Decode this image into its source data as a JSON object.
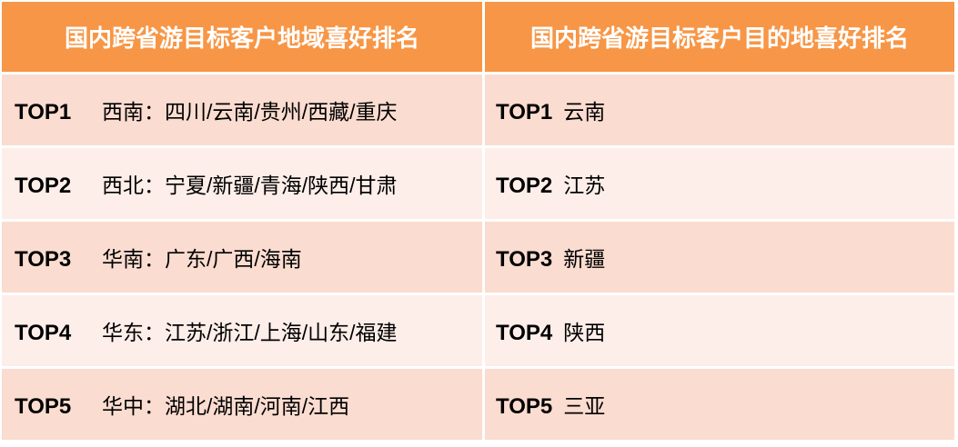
{
  "header": {
    "col1": "国内跨省游目标客户地域喜好排名",
    "col2": "国内跨省游目标客户目的地喜好排名"
  },
  "colors": {
    "header": "#F79646",
    "row_odd": "#FBDCD0",
    "row_even": "#FDEEE9"
  },
  "rows": [
    {
      "rank": "TOP1",
      "region": "西南：四川/云南/贵州/西藏/重庆",
      "rank2": "TOP1",
      "dest": "云南"
    },
    {
      "rank": "TOP2",
      "region": "西北：宁夏/新疆/青海/陕西/甘肃",
      "rank2": "TOP2",
      "dest": "江苏"
    },
    {
      "rank": "TOP3",
      "region": "华南：广东/广西/海南",
      "rank2": "TOP3",
      "dest": "新疆"
    },
    {
      "rank": "TOP4",
      "region": "华东：江苏/浙江/上海/山东/福建",
      "rank2": "TOP4",
      "dest": "陕西"
    },
    {
      "rank": "TOP5",
      "region": "华中：湖北/湖南/河南/江西",
      "rank2": "TOP5",
      "dest": "三亚"
    }
  ]
}
